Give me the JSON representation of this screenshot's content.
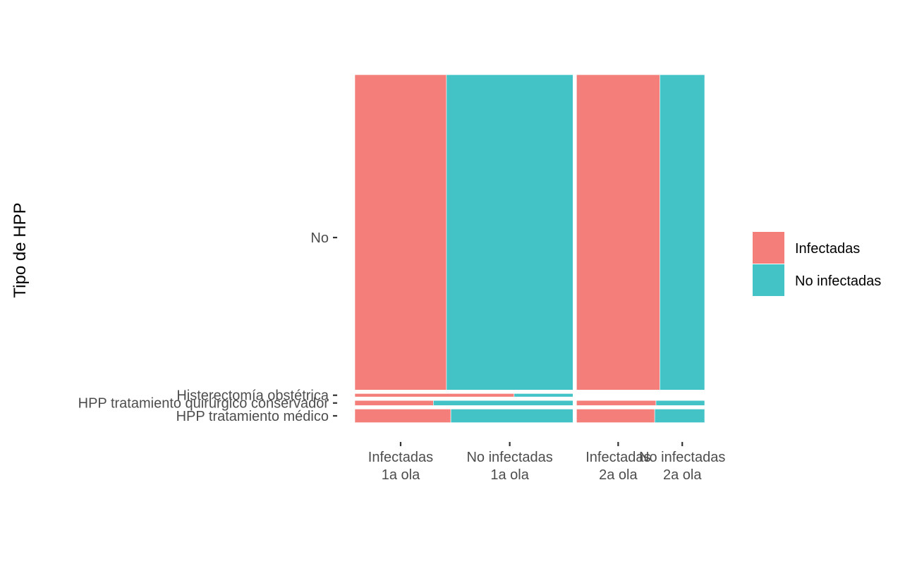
{
  "chart_data": {
    "type": "mosaic",
    "ylabel": "Tipo de HPP",
    "xlabel": "",
    "columns": [
      {
        "label_line1": "Infectadas",
        "label_line2": "1a ola",
        "wave": "1a ola"
      },
      {
        "label_line1": "No infectadas",
        "label_line2": "1a ola",
        "wave": "1a ola"
      },
      {
        "label_line1": "Infectadas",
        "label_line2": "2a ola",
        "wave": "2a ola"
      },
      {
        "label_line1": "No infectadas",
        "label_line2": "2a ola",
        "wave": "2a ola"
      }
    ],
    "waves": [
      {
        "name": "1a ola",
        "share": 0.63
      },
      {
        "name": "2a ola",
        "share": 0.37
      }
    ],
    "rows": [
      "No",
      "Histerectomía obstétrica",
      "HPP tratamiento quirúrgico conservador",
      "HPP tratamiento médico"
    ],
    "series": [
      {
        "name": "Infectadas",
        "wave_shares": {
          "1a ola": [
            0.42,
            0.73,
            0.36,
            0.44
          ],
          "2a ola": [
            0.65,
            0.0,
            0.62,
            0.61
          ]
        }
      },
      {
        "name": "No infectadas",
        "wave_shares": {
          "1a ola": [
            0.58,
            0.27,
            0.64,
            0.56
          ],
          "2a ola": [
            0.35,
            0.0,
            0.38,
            0.39
          ]
        }
      }
    ],
    "row_shares": [
      0.93,
      0.01,
      0.015,
      0.04
    ],
    "legend": {
      "position": "right",
      "title": ""
    },
    "colors": {
      "Infectadas": "#F47F7A",
      "No infectadas": "#44C3C7"
    }
  }
}
